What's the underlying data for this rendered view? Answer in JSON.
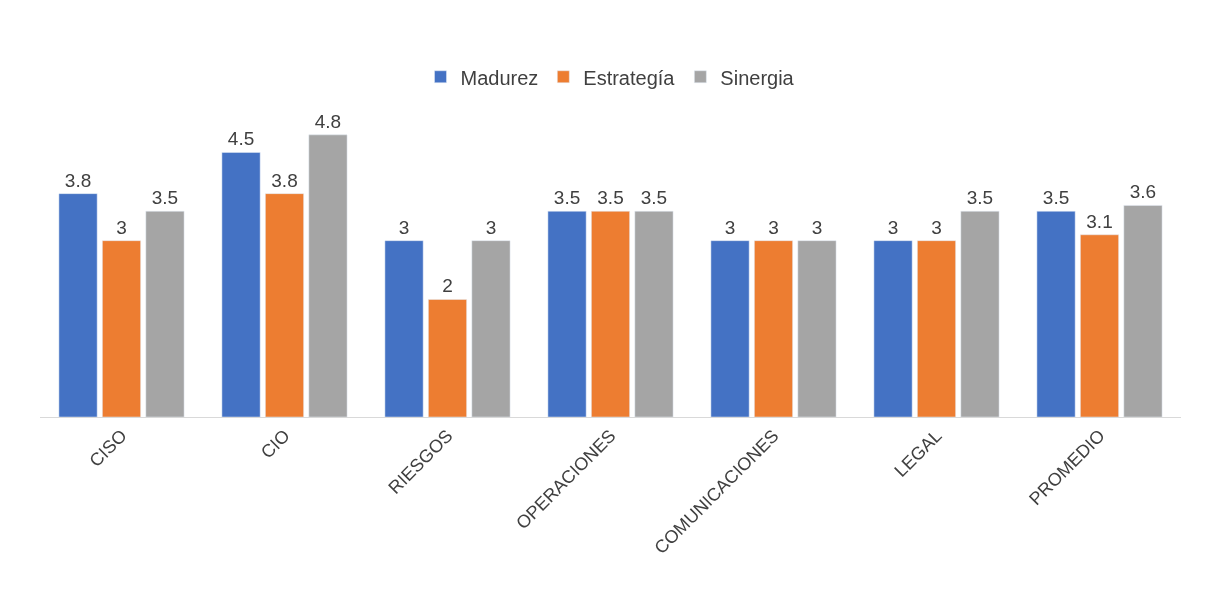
{
  "chart_data": {
    "type": "bar",
    "categories": [
      "CISO",
      "CIO",
      "RIESGOS",
      "OPERACIONES",
      "COMUNICACIONES",
      "LEGAL",
      "PROMEDIO"
    ],
    "series": [
      {
        "name": "Madurez",
        "color": "#4472c4",
        "values": [
          3.8,
          4.5,
          3,
          3.5,
          3,
          3,
          3.5
        ]
      },
      {
        "name": "Estrategía",
        "color": "#ed7d31",
        "values": [
          3,
          3.8,
          2,
          3.5,
          3,
          3,
          3.1
        ]
      },
      {
        "name": "Sinergia",
        "color": "#a5a5a5",
        "values": [
          3.5,
          4.8,
          3,
          3.5,
          3,
          3.5,
          3.6
        ]
      }
    ],
    "data_labels": true,
    "legend": "top",
    "tick_labels": "x"
  }
}
